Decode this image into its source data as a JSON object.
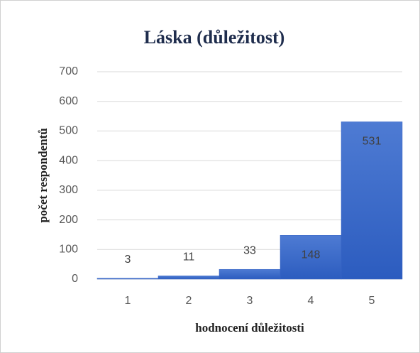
{
  "chart_data": {
    "type": "bar",
    "title": "Láska (důležitost)",
    "x_label": "hodnocení důležitosti",
    "y_label": "počet respondentů",
    "categories": [
      "1",
      "2",
      "3",
      "4",
      "5"
    ],
    "values": [
      3,
      11,
      33,
      148,
      531
    ],
    "color": "#3a66c6",
    "ylim": [
      0,
      700
    ],
    "yticks": [
      0,
      100,
      200,
      300,
      400,
      500,
      600,
      700
    ],
    "grid": true
  }
}
